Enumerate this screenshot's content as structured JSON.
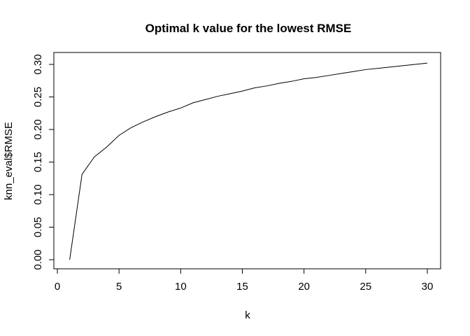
{
  "chart_data": {
    "type": "line",
    "title": "Optimal k value for the lowest RMSE",
    "xlabel": "k",
    "ylabel": "knn_eval$RMSE",
    "xlim": [
      0,
      30
    ],
    "ylim": [
      0,
      0.3
    ],
    "x_ticks": [
      0,
      5,
      10,
      15,
      20,
      25,
      30
    ],
    "x_tick_labels": [
      "0",
      "5",
      "10",
      "15",
      "20",
      "25",
      "30"
    ],
    "y_ticks": [
      0,
      0.05,
      0.1,
      0.15,
      0.2,
      0.25,
      0.3
    ],
    "y_tick_labels": [
      "0.00",
      "0.05",
      "0.10",
      "0.15",
      "0.20",
      "0.25",
      "0.30"
    ],
    "grid": false,
    "legend": "none",
    "series": [
      {
        "color": "#000000",
        "x": [
          1,
          2,
          3,
          4,
          5,
          6,
          7,
          8,
          9,
          10,
          11,
          12,
          13,
          14,
          15,
          16,
          17,
          18,
          19,
          20,
          21,
          22,
          23,
          24,
          25,
          26,
          27,
          28,
          29,
          30
        ],
        "y": [
          0.0,
          0.131,
          0.158,
          0.173,
          0.191,
          0.203,
          0.212,
          0.22,
          0.227,
          0.233,
          0.241,
          0.246,
          0.251,
          0.255,
          0.259,
          0.264,
          0.267,
          0.271,
          0.274,
          0.278,
          0.28,
          0.283,
          0.286,
          0.289,
          0.292,
          0.294,
          0.296,
          0.298,
          0.3,
          0.302
        ]
      }
    ]
  }
}
